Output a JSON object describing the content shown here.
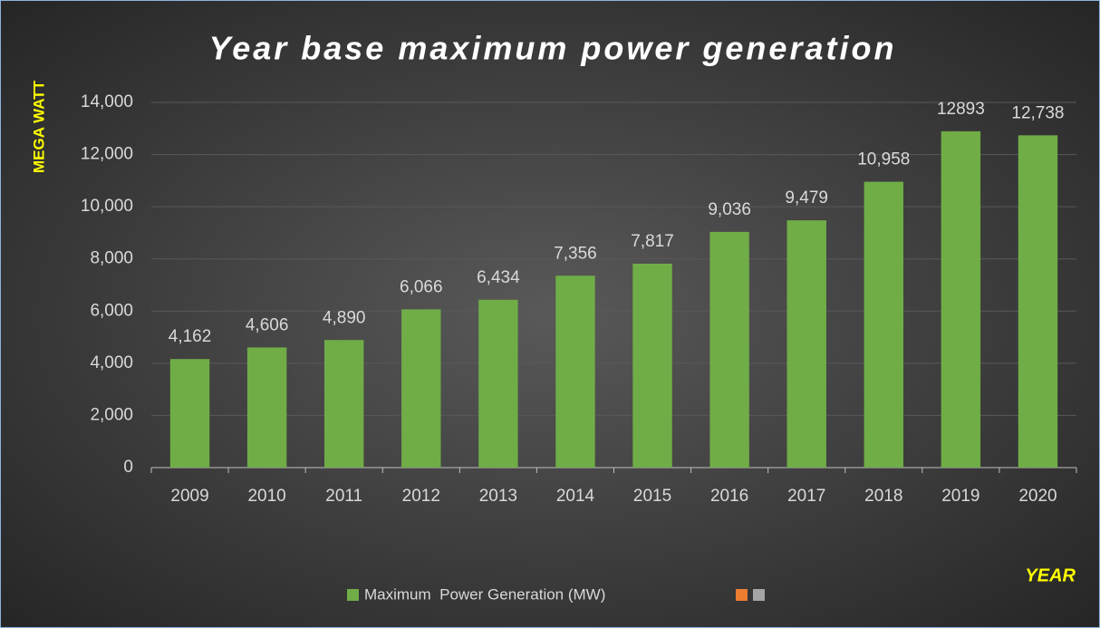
{
  "chart_data": {
    "type": "bar",
    "title": "Year base maximum power generation",
    "y_label": "MEGA WATT",
    "x_label": "YEAR",
    "categories": [
      "2009",
      "2010",
      "2011",
      "2012",
      "2013",
      "2014",
      "2015",
      "2016",
      "2017",
      "2018",
      "2019",
      "2020"
    ],
    "series": [
      {
        "name": "Maximum  Power Generation (MW)",
        "color": "#70ad47",
        "values": [
          4162,
          4606,
          4890,
          6066,
          6434,
          7356,
          7817,
          9036,
          9479,
          10958,
          12893,
          12738
        ],
        "value_labels": [
          "4,162",
          "4,606",
          "4,890",
          "6,066",
          "6,434",
          "7,356",
          "7,817",
          "9,036",
          "9,479",
          "10,958",
          "12893",
          "12,738"
        ]
      }
    ],
    "ylim": [
      0,
      14000
    ],
    "yticks": [
      0,
      {
        "value": 2000,
        "label": "2,000"
      },
      {
        "value": 4000,
        "label": "4,000"
      },
      {
        "value": 6000,
        "label": "6,000"
      },
      {
        "value": 8000,
        "label": "8,000"
      },
      {
        "value": 10000,
        "label": "10,000"
      },
      {
        "value": 12000,
        "label": "12,000"
      },
      {
        "value": 14000,
        "label": "14,000"
      }
    ],
    "grid": true,
    "legend": "bottom"
  }
}
